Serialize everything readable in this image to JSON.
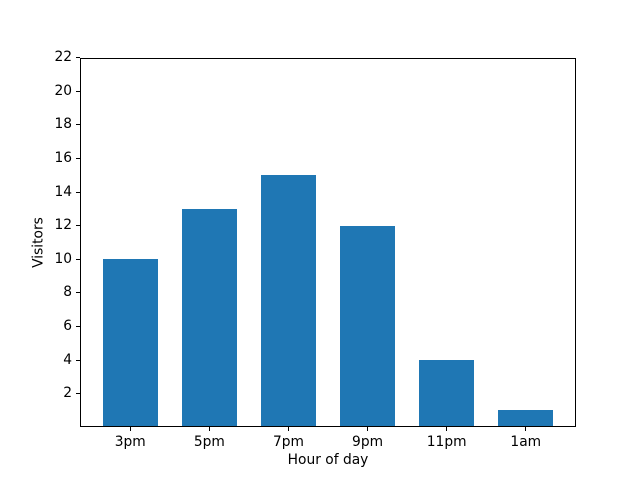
{
  "chart_data": {
    "type": "bar",
    "categories": [
      "3pm",
      "5pm",
      "7pm",
      "9pm",
      "11pm",
      "1am"
    ],
    "values": [
      10,
      13,
      15,
      12,
      4,
      1
    ],
    "title": "",
    "xlabel": "Hour of day",
    "ylabel": "Visitors",
    "ylim": [
      0,
      22
    ],
    "yticks": [
      2,
      4,
      6,
      8,
      10,
      12,
      14,
      16,
      18,
      20,
      22
    ],
    "bar_color": "#1f77b4",
    "axis_color": "#000000",
    "background_color": "#ffffff",
    "grid": false,
    "legend": null,
    "bar_width_fraction": 0.7,
    "x_edge_pad_fraction": 0.635
  }
}
